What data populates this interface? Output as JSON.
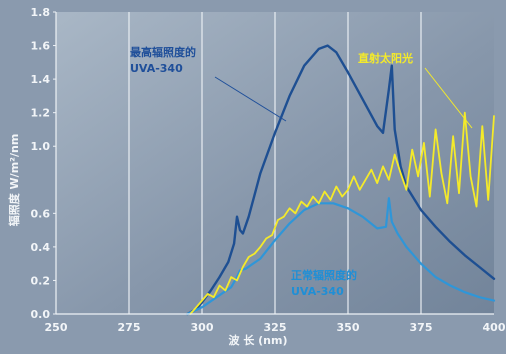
{
  "chart_data": {
    "type": "line",
    "xlabel": "波 长 (nm)",
    "ylabel": "辐照度 W/m²/nm",
    "xlim": [
      250,
      400
    ],
    "ylim": [
      0,
      1.8
    ],
    "x_ticks": [
      "250",
      "275",
      "300",
      "325",
      "350",
      "375",
      "400"
    ],
    "y_ticks": [
      "0.0",
      "0.2",
      "0.4",
      "0.6",
      "1.0",
      "1.2",
      "1.4",
      "1.6",
      "1.8"
    ],
    "grid": "vertical",
    "annotations": [
      {
        "text_lines": [
          "最高辐照度的",
          "UVA-340"
        ],
        "color": "#1f4f9a"
      },
      {
        "text_lines": [
          "直射太阳光"
        ],
        "color": "#f4ea2a"
      },
      {
        "text_lines": [
          "正常辐照度的",
          "UVA-340"
        ],
        "color": "#1f8fd6"
      }
    ],
    "series": [
      {
        "color": "#1e4f92",
        "x": [
          295,
          298,
          300,
          303,
          306,
          309,
          311,
          312,
          313,
          314,
          316,
          320,
          325,
          330,
          335,
          340,
          343,
          346,
          350,
          355,
          360,
          362,
          364,
          365,
          366,
          368,
          370,
          375,
          380,
          385,
          390,
          395,
          400
        ],
        "y": [
          0.0,
          0.03,
          0.07,
          0.14,
          0.22,
          0.31,
          0.42,
          0.58,
          0.5,
          0.48,
          0.58,
          0.84,
          1.08,
          1.3,
          1.48,
          1.58,
          1.6,
          1.56,
          1.44,
          1.28,
          1.12,
          1.08,
          1.34,
          1.48,
          1.1,
          0.88,
          0.76,
          0.62,
          0.52,
          0.43,
          0.35,
          0.28,
          0.21
        ]
      },
      {
        "color": "#2f96d8",
        "x": [
          295,
          300,
          305,
          310,
          312,
          313,
          315,
          320,
          325,
          330,
          335,
          340,
          345,
          350,
          355,
          360,
          363,
          364,
          365,
          367,
          370,
          375,
          380,
          385,
          390,
          395,
          400
        ],
        "y": [
          0.0,
          0.04,
          0.1,
          0.16,
          0.22,
          0.26,
          0.27,
          0.33,
          0.44,
          0.54,
          0.62,
          0.66,
          0.66,
          0.63,
          0.58,
          0.51,
          0.52,
          0.69,
          0.55,
          0.48,
          0.4,
          0.3,
          0.22,
          0.17,
          0.13,
          0.1,
          0.08
        ]
      },
      {
        "color": "#f4ea2a",
        "x": [
          296,
          298,
          300,
          302,
          304,
          306,
          308,
          310,
          312,
          314,
          316,
          318,
          320,
          322,
          324,
          326,
          328,
          330,
          332,
          334,
          336,
          338,
          340,
          342,
          344,
          346,
          348,
          350,
          352,
          354,
          356,
          358,
          360,
          362,
          364,
          366,
          368,
          370,
          372,
          374,
          376,
          378,
          380,
          382,
          384,
          386,
          388,
          390,
          392,
          394,
          396,
          398,
          400
        ],
        "y": [
          0.0,
          0.04,
          0.08,
          0.12,
          0.1,
          0.17,
          0.14,
          0.22,
          0.2,
          0.28,
          0.34,
          0.36,
          0.4,
          0.45,
          0.47,
          0.56,
          0.58,
          0.63,
          0.6,
          0.67,
          0.64,
          0.7,
          0.66,
          0.73,
          0.68,
          0.76,
          0.7,
          0.74,
          0.82,
          0.74,
          0.8,
          0.86,
          0.78,
          0.88,
          0.8,
          0.95,
          0.84,
          0.74,
          0.98,
          0.82,
          1.02,
          0.7,
          1.1,
          0.84,
          0.66,
          1.06,
          0.72,
          1.2,
          0.82,
          0.64,
          1.12,
          0.68,
          1.18
        ]
      }
    ]
  }
}
